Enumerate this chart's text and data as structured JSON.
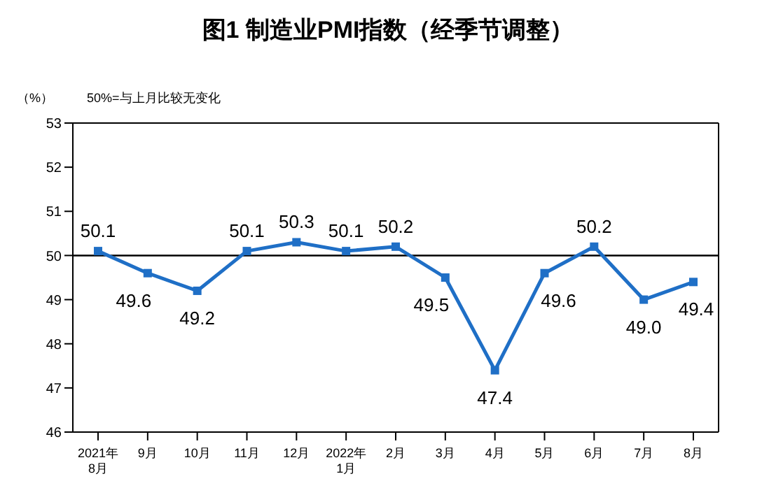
{
  "chart_data": {
    "type": "line",
    "title": "图1 制造业PMI指数（经季节调整）",
    "ylabel": "（%）",
    "annotations": [
      "50%=与上月比较无变化"
    ],
    "categories": [
      "2021年\n8月",
      "9月",
      "10月",
      "11月",
      "12月",
      "2022年\n1月",
      "2月",
      "3月",
      "4月",
      "5月",
      "6月",
      "7月",
      "8月"
    ],
    "series": [
      {
        "color": "#1f6fc6",
        "values": [
          50.1,
          49.6,
          49.2,
          50.1,
          50.3,
          50.1,
          50.2,
          49.5,
          47.4,
          49.6,
          50.2,
          49.0,
          49.4
        ]
      }
    ],
    "ylim": [
      46,
      53
    ],
    "yticks": [
      46,
      47,
      48,
      49,
      50,
      51,
      52,
      53
    ],
    "ref_lines": [
      {
        "axis": "y",
        "value": 50,
        "color": "#000000"
      }
    ],
    "value_labels": [
      "50.1",
      "49.6",
      "49.2",
      "50.1",
      "50.3",
      "50.1",
      "50.2",
      "49.5",
      "47.4",
      "49.6",
      "50.2",
      "49.0",
      "49.4"
    ],
    "marker": "square",
    "grid": false,
    "legend": false
  }
}
